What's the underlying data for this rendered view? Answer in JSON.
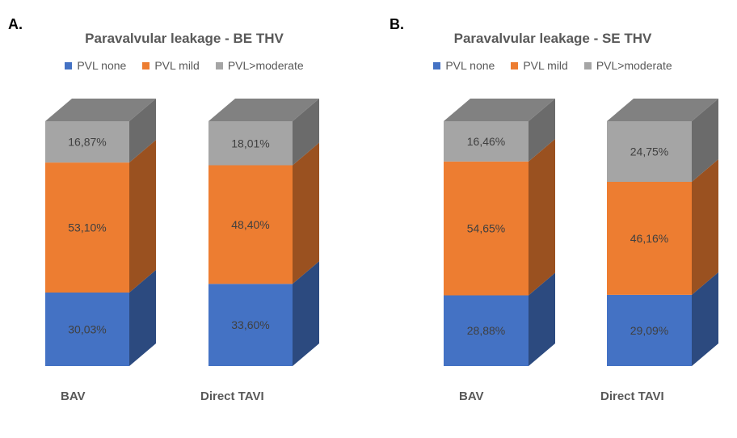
{
  "chart_data": [
    {
      "type": "bar",
      "stacked": true,
      "panel_label": "A.",
      "title": "Paravalvular leakage - BE THV",
      "categories": [
        "BAV",
        "Direct TAVI"
      ],
      "series": [
        {
          "name": "PVL none",
          "values": [
            30.03,
            33.6
          ],
          "labels": [
            "30,03%",
            "33,60%"
          ],
          "color": "#4472C4"
        },
        {
          "name": "PVL mild",
          "values": [
            53.1,
            48.4
          ],
          "labels": [
            "53,10%",
            "48,40%"
          ],
          "color": "#ED7D31"
        },
        {
          "name": "PVL>moderate",
          "values": [
            16.87,
            18.01
          ],
          "labels": [
            "16,87%",
            "18,01%"
          ],
          "color": "#A5A5A5"
        }
      ],
      "ylim": [
        0,
        100
      ]
    },
    {
      "type": "bar",
      "stacked": true,
      "panel_label": "B.",
      "title": "Paravalvular leakage - SE THV",
      "categories": [
        "BAV",
        "Direct TAVI"
      ],
      "series": [
        {
          "name": "PVL none",
          "values": [
            28.88,
            29.09
          ],
          "labels": [
            "28,88%",
            "29,09%"
          ],
          "color": "#4472C4"
        },
        {
          "name": "PVL mild",
          "values": [
            54.65,
            46.16
          ],
          "labels": [
            "54,65%",
            "46,16%"
          ],
          "color": "#ED7D31"
        },
        {
          "name": "PVL>moderate",
          "values": [
            16.46,
            24.75
          ],
          "labels": [
            "16,46%",
            "24,75%"
          ],
          "color": "#A5A5A5"
        }
      ],
      "ylim": [
        0,
        100
      ]
    }
  ]
}
